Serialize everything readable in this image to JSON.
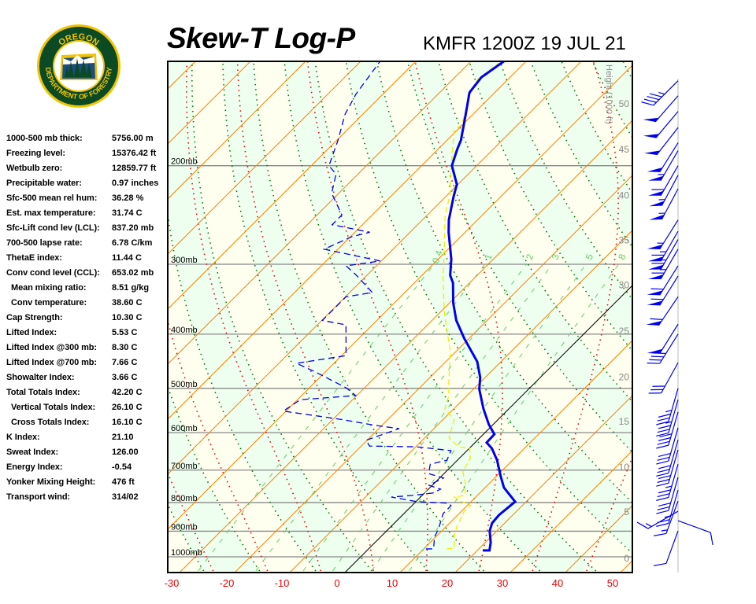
{
  "logo": {
    "text_top": "OREGON",
    "text_bottom": "DEPARTMENT OF FORESTRY"
  },
  "header": {
    "title": "Skew-T Log-P",
    "station": "KMFR 1200Z 19 JUL 21"
  },
  "stats": [
    {
      "label": "1000-500 mb thick:",
      "value": "5756.00 m",
      "indent": false
    },
    {
      "label": "Freezing level:",
      "value": "15376.42 ft",
      "indent": false
    },
    {
      "label": "Wetbulb zero:",
      "value": "12859.77 ft",
      "indent": false
    },
    {
      "label": "Precipitable water:",
      "value": "0.97 inches",
      "indent": false
    },
    {
      "label": "Sfc-500 mean rel hum:",
      "value": "36.28 %",
      "indent": false
    },
    {
      "label": "Est. max temperature:",
      "value": "31.74 C",
      "indent": false
    },
    {
      "label": "Sfc-Lift cond lev (LCL):",
      "value": "837.20 mb",
      "indent": false
    },
    {
      "label": "700-500 lapse rate:",
      "value": "6.78 C/km",
      "indent": false
    },
    {
      "label": "ThetaE index:",
      "value": "11.44 C",
      "indent": false
    },
    {
      "label": "Conv cond level (CCL):",
      "value": "653.02 mb",
      "indent": false
    },
    {
      "label": "Mean mixing ratio:",
      "value": "8.51 g/kg",
      "indent": true
    },
    {
      "label": "Conv temperature:",
      "value": "38.60 C",
      "indent": true
    },
    {
      "label": "Cap Strength:",
      "value": "10.30 C",
      "indent": false
    },
    {
      "label": "Lifted Index:",
      "value": "5.53 C",
      "indent": false
    },
    {
      "label": "Lifted Index @300 mb:",
      "value": "8.30 C",
      "indent": false
    },
    {
      "label": "Lifted Index @700 mb:",
      "value": "7.66 C",
      "indent": false
    },
    {
      "label": "Showalter Index:",
      "value": "3.66 C",
      "indent": false
    },
    {
      "label": "Total Totals Index:",
      "value": "42.20 C",
      "indent": false
    },
    {
      "label": "Vertical Totals Index:",
      "value": "26.10 C",
      "indent": true
    },
    {
      "label": "Cross Totals Index:",
      "value": "16.10 C",
      "indent": true
    },
    {
      "label": "K Index:",
      "value": "21.10",
      "indent": false
    },
    {
      "label": "Sweat Index:",
      "value": "126.00",
      "indent": false
    },
    {
      "label": "Energy Index:",
      "value": "-0.54",
      "indent": false
    },
    {
      "label": "Yonker Mixing Height:",
      "value": "476 ft",
      "indent": false
    },
    {
      "label": "Transport wind:",
      "value": "314/02",
      "indent": false
    }
  ],
  "chart_data": {
    "type": "skew-t",
    "title": "Skew-T Log-P",
    "subtitle": "KMFR 1200Z 19 JUL 21",
    "x_ticks": [
      {
        "t": -30,
        "label": "-30"
      },
      {
        "t": -20,
        "label": "-20"
      },
      {
        "t": -10,
        "label": "-10"
      },
      {
        "t": 0,
        "label": "0"
      },
      {
        "t": 10,
        "label": "10"
      },
      {
        "t": 20,
        "label": "20"
      },
      {
        "t": 30,
        "label": "30"
      },
      {
        "t": 40,
        "label": "40"
      },
      {
        "t": 50,
        "label": "50"
      }
    ],
    "pressure_ticks": [
      {
        "p": 200,
        "label": "200mb"
      },
      {
        "p": 300,
        "label": "300mb"
      },
      {
        "p": 400,
        "label": "400mb"
      },
      {
        "p": 500,
        "label": "500mb"
      },
      {
        "p": 600,
        "label": "600mb"
      },
      {
        "p": 700,
        "label": "700mb"
      },
      {
        "p": 800,
        "label": "800mb"
      },
      {
        "p": 900,
        "label": "900mb"
      },
      {
        "p": 1000,
        "label": "1000mb"
      }
    ],
    "height_axis": {
      "label": "Height (1000 ft)",
      "ticks": [
        {
          "kft": "0",
          "p": 1006
        },
        {
          "kft": "5",
          "p": 832
        },
        {
          "kft": "10",
          "p": 691
        },
        {
          "kft": "15",
          "p": 573
        },
        {
          "kft": "20",
          "p": 477
        },
        {
          "kft": "25",
          "p": 395
        },
        {
          "kft": "30",
          "p": 327
        },
        {
          "kft": "35",
          "p": 272
        },
        {
          "kft": "40",
          "p": 226
        },
        {
          "kft": "45",
          "p": 187
        },
        {
          "kft": "50",
          "p": 155
        }
      ]
    },
    "mixing_ratio_labels": [
      "0.4",
      "1",
      "2",
      "3",
      "5",
      "8"
    ],
    "p_range": [
      1050,
      130
    ],
    "colors": {
      "temperature": "#0000ee",
      "dewpoint": "#0000ee",
      "wetbulb": "#eeee00",
      "isotherm": "#ff8000",
      "zero_isotherm": "#000000",
      "dry_adiabat": "#007700",
      "moist_adiabat": "#ee0000",
      "mixing_ratio": "#66cc66",
      "band_a": "#fffff0",
      "band_b": "#eefff0",
      "x_labels": "#ee0000"
    },
    "temperature": {
      "p": [
        974,
        974,
        943,
        899,
        870,
        842,
        815,
        797,
        752,
        717,
        672,
        640,
        625,
        604,
        580,
        544,
        502,
        478,
        448,
        407,
        378,
        352,
        324,
        314,
        294,
        263,
        250,
        227,
        216,
        200,
        187,
        180,
        162,
        148,
        139,
        130
      ],
      "t": [
        21.0,
        22.2,
        21.0,
        18.7,
        17.7,
        17.5,
        17.8,
        18.0,
        13.4,
        10.7,
        7.2,
        4.1,
        2.1,
        2.0,
        -0.8,
        -4.6,
        -8.9,
        -10.9,
        -14.3,
        -20.9,
        -25.6,
        -29.3,
        -33.0,
        -34.9,
        -37.6,
        -43.0,
        -45.2,
        -48.6,
        -50.2,
        -54.5,
        -56.5,
        -57.5,
        -61.3,
        -64.6,
        -65.2,
        -64.0
      ]
    },
    "dewpoint": {
      "p": [
        968,
        968,
        922,
        893,
        837,
        810,
        802,
        797,
        782,
        777,
        769,
        757,
        745,
        723,
        710,
        683,
        672,
        646,
        636,
        634,
        619,
        590,
        583,
        568,
        549,
        524,
        515,
        499,
        467,
        451,
        437,
        385,
        378,
        343,
        337,
        314,
        302,
        296,
        282,
        268,
        263,
        255,
        245,
        224,
        207,
        200,
        180,
        162,
        149,
        130
      ],
      "t": [
        10.4,
        11.8,
        9.8,
        9.1,
        7.1,
        7.1,
        6.2,
        0.2,
        -5.3,
        -1.9,
        1.5,
        2.2,
        -0.6,
        0.7,
        -2.8,
        -4.2,
        -1.9,
        -2.9,
        -9.8,
        -18.5,
        -20.2,
        -16.3,
        -20.8,
        -28.6,
        -40.5,
        -39.5,
        -30.2,
        -33.3,
        -41.9,
        -46.8,
        -39.2,
        -44.8,
        -49.9,
        -49.9,
        -45.9,
        -51.9,
        -55.5,
        -50.2,
        -62.5,
        -59.8,
        -57.3,
        -65.5,
        -65.5,
        -71.3,
        -74.0,
        -76.8,
        -79.8,
        -83.2,
        -84.9,
        -86.5
      ]
    },
    "wetbulb": {
      "p": [
        968,
        965,
        913,
        884,
        829,
        810,
        797,
        782,
        777,
        745,
        705,
        667,
        640,
        636,
        613,
        568,
        544,
        515,
        489,
        430,
        366,
        314,
        297,
        246,
        224,
        207,
        173,
        169,
        158,
        150,
        140,
        131
      ],
      "t": [
        14.2,
        15.4,
        13.0,
        12.0,
        10.5,
        10.7,
        8.4,
        6.1,
        7.7,
        6.1,
        3.1,
        2.0,
        0.1,
        -2.2,
        -5.6,
        -8.0,
        -11.6,
        -13.3,
        -15.6,
        -21.0,
        -29.2,
        -36.2,
        -38.5,
        -46.6,
        -49.8,
        -53.2,
        -60.5,
        -60.2,
        -62.2,
        -64.3,
        -65.5,
        -64.6
      ]
    },
    "wind_barbs": [
      {
        "p": 141,
        "dir": 225,
        "kt": 45
      },
      {
        "p": 150,
        "dir": 221,
        "kt": 50
      },
      {
        "p": 160,
        "dir": 220,
        "kt": 50
      },
      {
        "p": 171,
        "dir": 218,
        "kt": 50
      },
      {
        "p": 182,
        "dir": 212,
        "kt": 50
      },
      {
        "p": 188,
        "dir": 210,
        "kt": 55
      },
      {
        "p": 200,
        "dir": 210,
        "kt": 60
      },
      {
        "p": 208,
        "dir": 208,
        "kt": 55
      },
      {
        "p": 220,
        "dir": 208,
        "kt": 55
      },
      {
        "p": 250,
        "dir": 212,
        "kt": 55
      },
      {
        "p": 262,
        "dir": 210,
        "kt": 65
      },
      {
        "p": 271,
        "dir": 210,
        "kt": 65
      },
      {
        "p": 282,
        "dir": 210,
        "kt": 65
      },
      {
        "p": 302,
        "dir": 212,
        "kt": 60
      },
      {
        "p": 315,
        "dir": 212,
        "kt": 60
      },
      {
        "p": 343,
        "dir": 214,
        "kt": 60
      },
      {
        "p": 384,
        "dir": 212,
        "kt": 50
      },
      {
        "p": 400,
        "dir": 212,
        "kt": 40
      },
      {
        "p": 450,
        "dir": 209,
        "kt": 30
      },
      {
        "p": 500,
        "dir": 196,
        "kt": 35
      },
      {
        "p": 524,
        "dir": 196,
        "kt": 35
      },
      {
        "p": 551,
        "dir": 196,
        "kt": 40
      },
      {
        "p": 588,
        "dir": 196,
        "kt": 30
      },
      {
        "p": 618,
        "dir": 196,
        "kt": 30
      },
      {
        "p": 644,
        "dir": 196,
        "kt": 30
      },
      {
        "p": 683,
        "dir": 196,
        "kt": 35
      },
      {
        "p": 721,
        "dir": 196,
        "kt": 30
      },
      {
        "p": 760,
        "dir": 196,
        "kt": 25
      },
      {
        "p": 795,
        "dir": 200,
        "kt": 15
      },
      {
        "p": 829,
        "dir": 240,
        "kt": 15
      },
      {
        "p": 862,
        "dir": 110,
        "kt": 10
      },
      {
        "p": 899,
        "dir": 200,
        "kt": 10
      }
    ]
  }
}
